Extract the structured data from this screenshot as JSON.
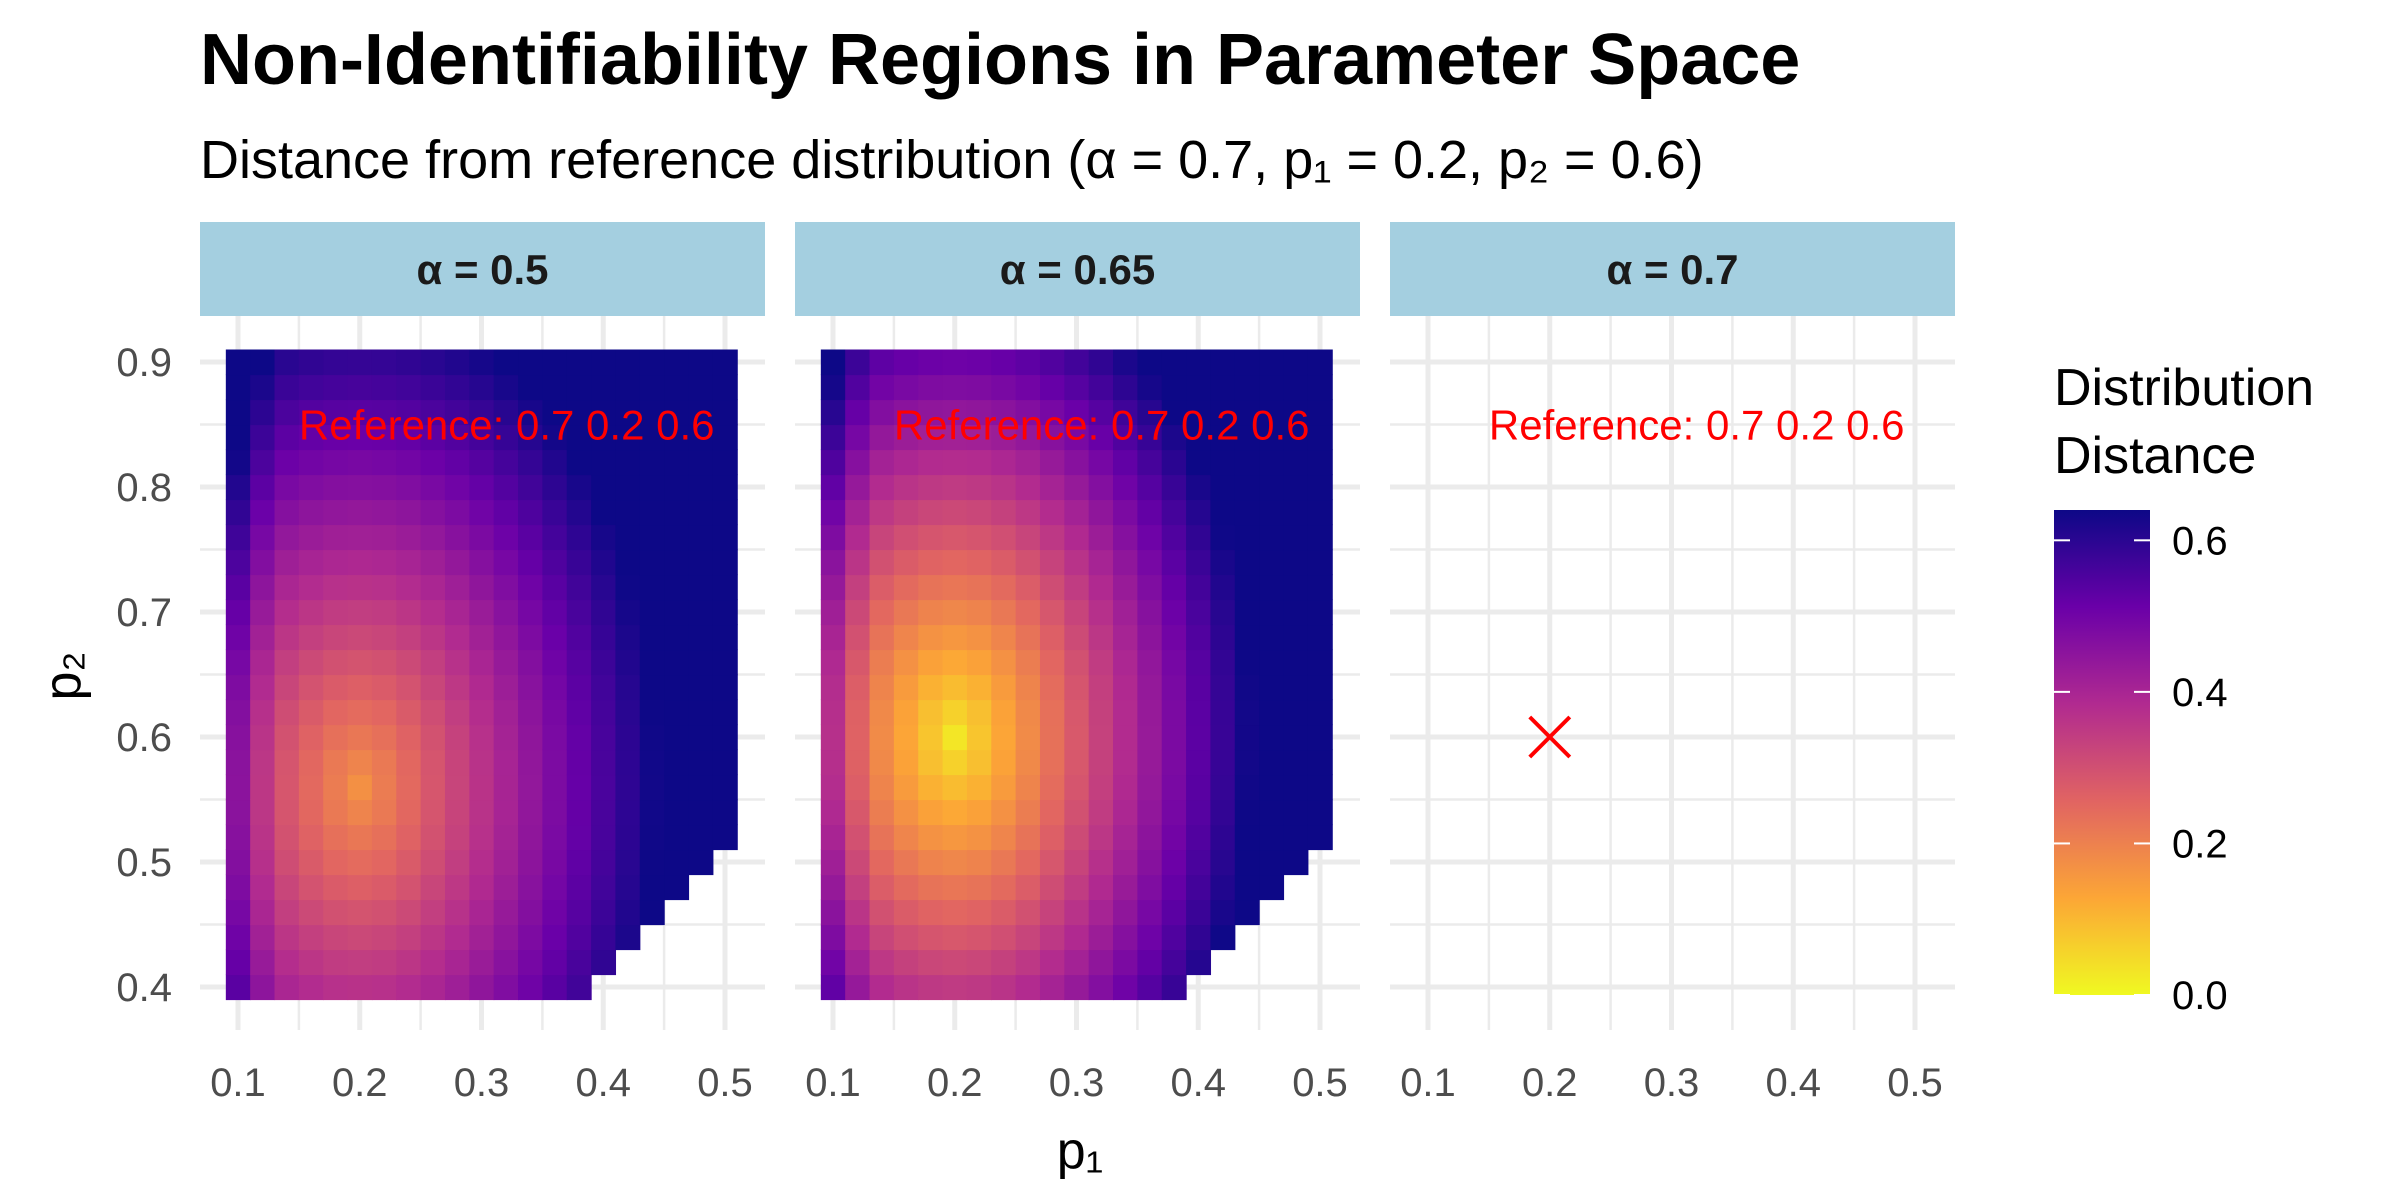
{
  "chart_data": {
    "type": "heatmap",
    "title": "Non-Identifiability Regions in Parameter Space",
    "subtitle": "Distance from reference distribution (α = 0.7, p₁ = 0.2, p₂ = 0.6)",
    "xlabel": "p₁",
    "ylabel": "p₂",
    "xlim": [
      0.1,
      0.5
    ],
    "ylim": [
      0.4,
      0.9
    ],
    "x_ticks": [
      0.1,
      0.2,
      0.3,
      0.4,
      0.5
    ],
    "x_tick_labels": [
      "0.1",
      "0.2",
      "0.3",
      "0.4",
      "0.5"
    ],
    "y_ticks": [
      0.4,
      0.5,
      0.6,
      0.7,
      0.8,
      0.9
    ],
    "y_tick_labels": [
      "0.4",
      "0.5",
      "0.6",
      "0.7",
      "0.8",
      "0.9"
    ],
    "grid_step": 0.02,
    "legend": {
      "title_lines": [
        "Distribution",
        "Distance"
      ],
      "range": [
        0.0,
        0.64
      ],
      "ticks": [
        0.0,
        0.2,
        0.4,
        0.6
      ],
      "tick_labels": [
        "0.0",
        "0.2",
        "0.4",
        "0.6"
      ],
      "colors": [
        "#f0f921",
        "#fca636",
        "#e16462",
        "#b12a90",
        "#6a00a8",
        "#0d0887"
      ],
      "position": "right"
    },
    "panels": [
      {
        "label": "α = 0.5",
        "alpha": 0.5,
        "min_distance": 0.17,
        "min_at": [
          0.2,
          0.56
        ],
        "boundary": {
          "p1_max": 0.5,
          "p2_min_at_p1_max": 0.51,
          "edge_slope": 1.0
        },
        "annotation": "Reference: 0.7 0.2 0.6",
        "annotation_at": [
          0.15,
          0.85
        ],
        "empty": false
      },
      {
        "label": "α = 0.65",
        "alpha": 0.65,
        "min_distance": 0.03,
        "min_at": [
          0.2,
          0.6
        ],
        "boundary": {
          "p1_max": 0.5,
          "p2_min_at_p1_max": 0.51,
          "edge_slope": 1.0
        },
        "annotation": "Reference: 0.7 0.2 0.6",
        "annotation_at": [
          0.15,
          0.85
        ],
        "empty": false
      },
      {
        "label": "α = 0.7",
        "alpha": 0.7,
        "annotation": "Reference: 0.7 0.2 0.6",
        "annotation_at": [
          0.15,
          0.85
        ],
        "empty": true,
        "marker": {
          "p1": 0.2,
          "p2": 0.6,
          "shape": "x"
        }
      }
    ],
    "colors": {
      "strip_bg": "#a4cfe0",
      "grid": "#ebebeb",
      "annotation": "#ff0000",
      "marker": "#ff0000"
    }
  }
}
